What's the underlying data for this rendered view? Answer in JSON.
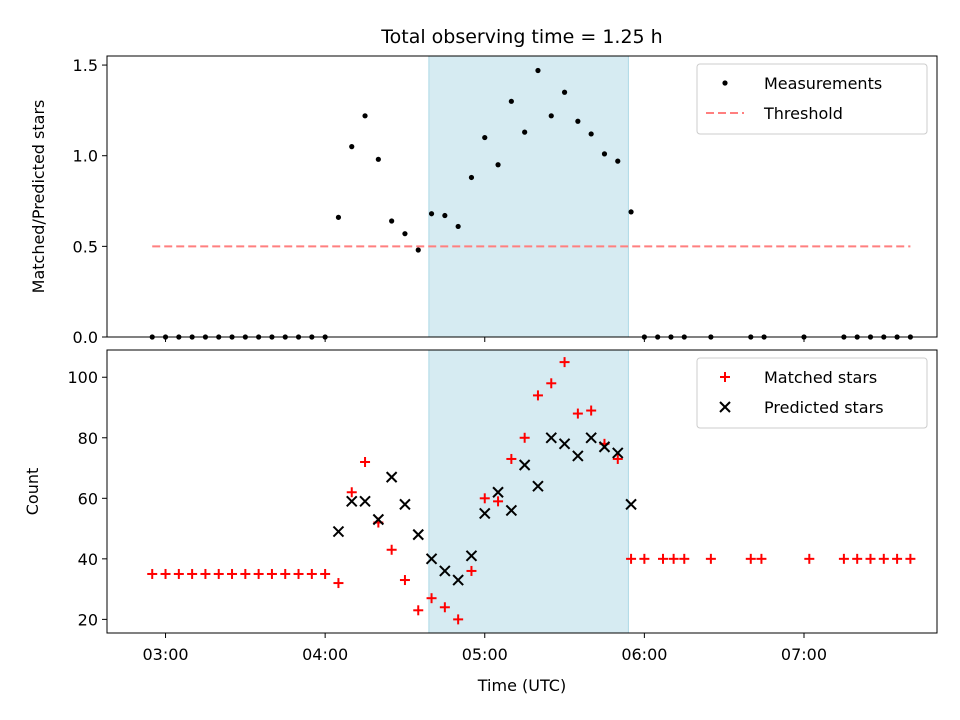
{
  "chart_data": [
    {
      "type": "scatter",
      "title": "Total observing time = 1.25 h",
      "ylabel": "Matched/Predicted stars",
      "ylim": [
        0,
        1.55
      ],
      "xlim": [
        "02:38",
        "07:50"
      ],
      "y_ticks": [
        "0.0",
        "0.5",
        "1.0",
        "1.5"
      ],
      "legend_position": "top-right",
      "grid": false,
      "shaded_interval": {
        "start": "04:39",
        "end": "05:54",
        "color": "#add8e6"
      },
      "series": [
        {
          "name": "Measurements",
          "marker": "dot",
          "color": "#000000",
          "points": [
            [
              "02:55",
              0
            ],
            [
              "03:00",
              0
            ],
            [
              "03:05",
              0
            ],
            [
              "03:10",
              0
            ],
            [
              "03:15",
              0
            ],
            [
              "03:20",
              0
            ],
            [
              "03:25",
              0
            ],
            [
              "03:30",
              0
            ],
            [
              "03:35",
              0
            ],
            [
              "03:40",
              0
            ],
            [
              "03:45",
              0
            ],
            [
              "03:50",
              0
            ],
            [
              "03:55",
              0
            ],
            [
              "04:00",
              0
            ],
            [
              "04:05",
              0.66
            ],
            [
              "04:10",
              1.05
            ],
            [
              "04:15",
              1.22
            ],
            [
              "04:20",
              0.98
            ],
            [
              "04:25",
              0.64
            ],
            [
              "04:30",
              0.57
            ],
            [
              "04:35",
              0.48
            ],
            [
              "04:40",
              0.68
            ],
            [
              "04:45",
              0.67
            ],
            [
              "04:50",
              0.61
            ],
            [
              "04:55",
              0.88
            ],
            [
              "05:00",
              1.1
            ],
            [
              "05:05",
              0.95
            ],
            [
              "05:10",
              1.3
            ],
            [
              "05:15",
              1.13
            ],
            [
              "05:20",
              1.47
            ],
            [
              "05:25",
              1.22
            ],
            [
              "05:30",
              1.35
            ],
            [
              "05:35",
              1.19
            ],
            [
              "05:40",
              1.12
            ],
            [
              "05:45",
              1.01
            ],
            [
              "05:50",
              0.97
            ],
            [
              "05:55",
              0.69
            ],
            [
              "06:00",
              0
            ],
            [
              "06:05",
              0
            ],
            [
              "06:10",
              0
            ],
            [
              "06:15",
              0
            ],
            [
              "06:25",
              0
            ],
            [
              "06:40",
              0
            ],
            [
              "06:45",
              0
            ],
            [
              "07:00",
              0
            ],
            [
              "07:15",
              0
            ],
            [
              "07:20",
              0
            ],
            [
              "07:25",
              0
            ],
            [
              "07:30",
              0
            ],
            [
              "07:35",
              0
            ],
            [
              "07:40",
              0
            ]
          ]
        },
        {
          "name": "Threshold",
          "marker": "dashed-line",
          "color": "#ff7f7f",
          "points": [
            [
              "02:55",
              0.5
            ],
            [
              "07:40",
              0.5
            ]
          ]
        }
      ]
    },
    {
      "type": "scatter",
      "xlabel": "Time (UTC)",
      "ylabel": "Count",
      "ylim": [
        15.5,
        109
      ],
      "xlim": [
        "02:38",
        "07:50"
      ],
      "y_ticks": [
        "20",
        "40",
        "60",
        "80",
        "100"
      ],
      "x_ticks": [
        "03:00",
        "04:00",
        "05:00",
        "06:00",
        "07:00"
      ],
      "legend_position": "top-right",
      "grid": false,
      "shaded_interval": {
        "start": "04:39",
        "end": "05:54",
        "color": "#add8e6"
      },
      "series": [
        {
          "name": "Matched stars",
          "marker": "plus",
          "color": "#ff0000",
          "points": [
            [
              "02:55",
              35
            ],
            [
              "03:00",
              35
            ],
            [
              "03:05",
              35
            ],
            [
              "03:10",
              35
            ],
            [
              "03:15",
              35
            ],
            [
              "03:20",
              35
            ],
            [
              "03:25",
              35
            ],
            [
              "03:30",
              35
            ],
            [
              "03:35",
              35
            ],
            [
              "03:40",
              35
            ],
            [
              "03:45",
              35
            ],
            [
              "03:50",
              35
            ],
            [
              "03:55",
              35
            ],
            [
              "04:00",
              35
            ],
            [
              "04:05",
              32
            ],
            [
              "04:10",
              62
            ],
            [
              "04:15",
              72
            ],
            [
              "04:20",
              52
            ],
            [
              "04:25",
              43
            ],
            [
              "04:30",
              33
            ],
            [
              "04:35",
              23
            ],
            [
              "04:40",
              27
            ],
            [
              "04:45",
              24
            ],
            [
              "04:50",
              20
            ],
            [
              "04:55",
              36
            ],
            [
              "05:00",
              60
            ],
            [
              "05:05",
              59
            ],
            [
              "05:10",
              73
            ],
            [
              "05:15",
              80
            ],
            [
              "05:20",
              94
            ],
            [
              "05:25",
              98
            ],
            [
              "05:30",
              105
            ],
            [
              "05:35",
              88
            ],
            [
              "05:40",
              89
            ],
            [
              "05:45",
              78
            ],
            [
              "05:50",
              73
            ],
            [
              "05:55",
              40
            ],
            [
              "06:00",
              40
            ],
            [
              "06:07",
              40
            ],
            [
              "06:11",
              40
            ],
            [
              "06:15",
              40
            ],
            [
              "06:25",
              40
            ],
            [
              "06:40",
              40
            ],
            [
              "06:44",
              40
            ],
            [
              "07:02",
              40
            ],
            [
              "07:15",
              40
            ],
            [
              "07:20",
              40
            ],
            [
              "07:25",
              40
            ],
            [
              "07:30",
              40
            ],
            [
              "07:35",
              40
            ],
            [
              "07:40",
              40
            ]
          ]
        },
        {
          "name": "Predicted stars",
          "marker": "x",
          "color": "#000000",
          "points": [
            [
              "04:05",
              49
            ],
            [
              "04:10",
              59
            ],
            [
              "04:15",
              59
            ],
            [
              "04:20",
              53
            ],
            [
              "04:25",
              67
            ],
            [
              "04:30",
              58
            ],
            [
              "04:35",
              48
            ],
            [
              "04:40",
              40
            ],
            [
              "04:45",
              36
            ],
            [
              "04:50",
              33
            ],
            [
              "04:55",
              41
            ],
            [
              "05:00",
              55
            ],
            [
              "05:05",
              62
            ],
            [
              "05:10",
              56
            ],
            [
              "05:15",
              71
            ],
            [
              "05:20",
              64
            ],
            [
              "05:25",
              80
            ],
            [
              "05:30",
              78
            ],
            [
              "05:35",
              74
            ],
            [
              "05:40",
              80
            ],
            [
              "05:45",
              77
            ],
            [
              "05:50",
              75
            ],
            [
              "05:55",
              58
            ]
          ]
        }
      ]
    }
  ]
}
